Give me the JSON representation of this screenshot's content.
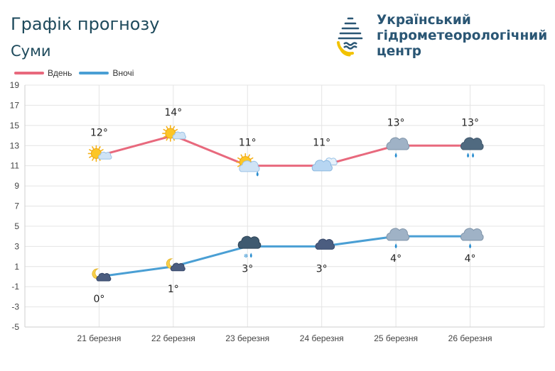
{
  "header": {
    "title": "Графік прогнозу",
    "city": "Суми",
    "org_lines": [
      "Український",
      "гідрометеорологічний",
      "центр"
    ]
  },
  "colors": {
    "day": "#e8697d",
    "night": "#4a9fd4",
    "title": "#1e4a5c",
    "org": "#2a5674"
  },
  "chart_data": {
    "type": "line",
    "categories": [
      "21 березня",
      "22 березня",
      "23 березня",
      "24 березня",
      "25 березня",
      "26 березня"
    ],
    "series": [
      {
        "name": "Вдень",
        "values": [
          12,
          14,
          11,
          11,
          13,
          13
        ],
        "labels": [
          "12°",
          "14°",
          "11°",
          "11°",
          "13°",
          "13°"
        ],
        "icons": [
          "sun-cloud-icon",
          "sun-cloud-icon",
          "sun-cloud-rain-icon",
          "cloudy-icon",
          "cloud-rain-icon",
          "dark-cloud-rain-icon"
        ]
      },
      {
        "name": "Вночі",
        "values": [
          0,
          1,
          3,
          3,
          4,
          4
        ],
        "labels": [
          "0°",
          "1°",
          "3°",
          "3°",
          "4°",
          "4°"
        ],
        "icons": [
          "moon-cloud-icon",
          "moon-cloud-icon",
          "dark-cloud-rain-snow-icon",
          "dark-cloud-icon",
          "cloud-rain-icon",
          "cloud-rain-icon"
        ]
      }
    ],
    "yticks": [
      19,
      17,
      15,
      13,
      11,
      9,
      7,
      5,
      3,
      1,
      -1,
      -3,
      -5
    ],
    "ylim": [
      -5,
      19
    ],
    "grid": true,
    "legend_position": "top-left"
  }
}
